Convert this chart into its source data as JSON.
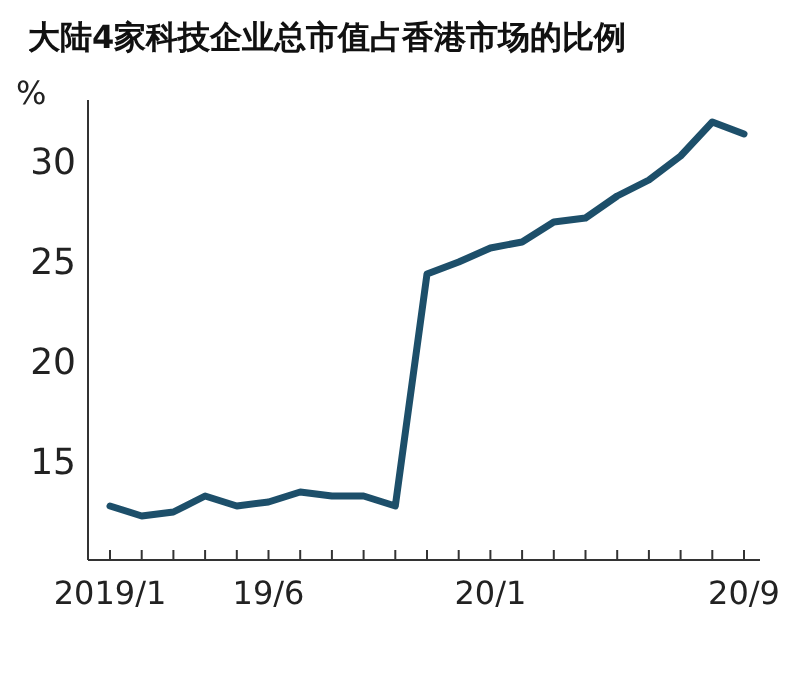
{
  "chart_data": {
    "type": "line",
    "title": "大陆4家科技企业总市值占香港市场的比例",
    "ylabel": "%",
    "categories": [
      "2019/1",
      null,
      null,
      null,
      null,
      "19/6",
      null,
      null,
      null,
      null,
      null,
      null,
      "20/1",
      null,
      null,
      null,
      null,
      null,
      null,
      null,
      "20/9"
    ],
    "series": [
      {
        "color": "#1d4f6a",
        "values": [
          12.7,
          12.2,
          12.4,
          13.2,
          12.7,
          12.9,
          13.4,
          13.2,
          13.2,
          12.7,
          24.3,
          24.9,
          25.6,
          25.9,
          26.9,
          27.1,
          28.2,
          29.0,
          30.2,
          31.9,
          31.3
        ]
      }
    ],
    "ylim": [
      10,
      33
    ],
    "yticks": [
      15,
      20,
      25,
      30
    ],
    "grid": false
  }
}
